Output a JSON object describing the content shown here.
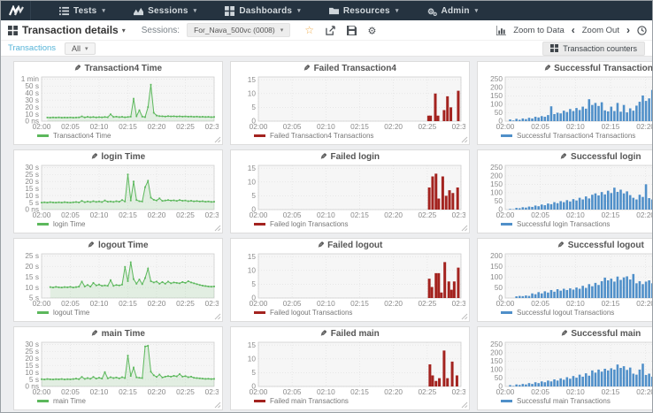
{
  "navbar": {
    "items": [
      {
        "icon": "list",
        "label": "Tests"
      },
      {
        "icon": "chart",
        "label": "Sessions"
      },
      {
        "icon": "grid",
        "label": "Dashboards"
      },
      {
        "icon": "folder",
        "label": "Resources"
      },
      {
        "icon": "cogs",
        "label": "Admin"
      }
    ]
  },
  "toolbar": {
    "title": "Transaction details",
    "sessions_label": "Sessions:",
    "session_value": "For_Nava_500vc (0008)",
    "star_icon": "favorite",
    "zoom_to_data": "Zoom to Data",
    "zoom_out": "Zoom Out"
  },
  "filterbar": {
    "transactions": "Transactions",
    "all": "All",
    "counters": "Transaction counters"
  },
  "colors": {
    "navbar_bg": "#253340",
    "accent_star": "#f0ad4e",
    "link_blue": "#56b4d8",
    "line_green": "#5cb85c",
    "bar_red": "#a3231f",
    "bar_blue": "#4f8fc9",
    "plot_bg": "#f6f6f6",
    "grid_line": "#e2e2e2",
    "plot_border": "#cfcfcf"
  },
  "xticks": [
    {
      "v": 0,
      "l": "02:00"
    },
    {
      "v": 5,
      "l": "02:05"
    },
    {
      "v": 10,
      "l": "02:10"
    },
    {
      "v": 15,
      "l": "02:15"
    },
    {
      "v": 20,
      "l": "02:20"
    },
    {
      "v": 25,
      "l": "02:25"
    },
    {
      "v": 30,
      "l": "02:30"
    }
  ],
  "chart_data": [
    {
      "type": "line",
      "title": "Transaction4 Time",
      "legend": "Transaction4 Time",
      "color": "green",
      "ylim": [
        0,
        63
      ],
      "yticks": [
        {
          "v": 60,
          "l": "1 min"
        },
        {
          "v": 50,
          "l": "50 s"
        },
        {
          "v": 40,
          "l": "40 s"
        },
        {
          "v": 30,
          "l": "30 s"
        },
        {
          "v": 20,
          "l": "20 s"
        },
        {
          "v": 10,
          "l": "10 s"
        },
        {
          "v": 0,
          "l": "0 ns"
        }
      ],
      "x_start": 1.0,
      "x_step": 0.5,
      "values": [
        5.2,
        5.0,
        5.3,
        5.1,
        5.4,
        5.0,
        5.2,
        5.1,
        5.3,
        5.0,
        5.2,
        5.4,
        6.8,
        5.4,
        6.2,
        5.6,
        6.0,
        5.4,
        5.8,
        5.5,
        6.0,
        5.6,
        9.8,
        6.0,
        6.4,
        5.8,
        6.2,
        5.6,
        6.0,
        6.4,
        32,
        7.0,
        15.5,
        6.5,
        5.8,
        20,
        52,
        12,
        8.0,
        7.2,
        7.0,
        6.6,
        7.2,
        6.8,
        7.0,
        6.6,
        6.9,
        6.5,
        6.8,
        6.4,
        6.6,
        6.2,
        6.5,
        6.1,
        6.3,
        6.0,
        6.2,
        5.8,
        6.0
      ]
    },
    {
      "type": "bar",
      "title": "Failed Transaction4",
      "legend": "Failed Transaction4 Transactions",
      "color": "red",
      "ylim": [
        0,
        16
      ],
      "yticks": [
        {
          "v": 15,
          "l": "15"
        },
        {
          "v": 10,
          "l": "10"
        },
        {
          "v": 5,
          "l": "5"
        },
        {
          "v": 0,
          "l": "0"
        }
      ],
      "points": [
        [
          25.2,
          2
        ],
        [
          25.5,
          2
        ],
        [
          26.2,
          10
        ],
        [
          26.6,
          2
        ],
        [
          27.5,
          4
        ],
        [
          28.0,
          9
        ],
        [
          28.5,
          5
        ],
        [
          29.6,
          11
        ]
      ]
    },
    {
      "type": "bar",
      "title": "Successful Transaction4",
      "legend": "Successful Transaction4 Transactions",
      "color": "blue",
      "ylim": [
        0,
        262
      ],
      "yticks": [
        {
          "v": 250,
          "l": "250"
        },
        {
          "v": 200,
          "l": "200"
        },
        {
          "v": 150,
          "l": "150"
        },
        {
          "v": 100,
          "l": "100"
        },
        {
          "v": 50,
          "l": "50"
        },
        {
          "v": 0,
          "l": "0"
        }
      ],
      "x_start": 0.7,
      "x_step": 0.45,
      "values": [
        10,
        4,
        14,
        8,
        16,
        12,
        20,
        16,
        26,
        22,
        30,
        26,
        36,
        88,
        42,
        50,
        46,
        62,
        54,
        72,
        60,
        78,
        66,
        86,
        74,
        130,
        96,
        108,
        90,
        112,
        64,
        58,
        86,
        60,
        108,
        56,
        96,
        52,
        76,
        62,
        92,
        115,
        152,
        120,
        135,
        185,
        142,
        158,
        138,
        172,
        185,
        140,
        165,
        150,
        178,
        160,
        185,
        170,
        188,
        175,
        190,
        178,
        185,
        180,
        188,
        182
      ]
    },
    {
      "type": "line",
      "title": "login Time",
      "legend": "login Time",
      "color": "green",
      "ylim": [
        0,
        31.5
      ],
      "yticks": [
        {
          "v": 30,
          "l": "30 s"
        },
        {
          "v": 25,
          "l": "25 s"
        },
        {
          "v": 20,
          "l": "20 s"
        },
        {
          "v": 15,
          "l": "15 s"
        },
        {
          "v": 10,
          "l": "10 s"
        },
        {
          "v": 5,
          "l": "5 s"
        },
        {
          "v": 0,
          "l": "0 ns"
        }
      ],
      "x_start": 0,
      "x_step": 0.5,
      "values": [
        5,
        5.2,
        5,
        5.3,
        5.1,
        5,
        5.2,
        5,
        5.3,
        5.1,
        5,
        5.2,
        5.4,
        5.1,
        6.2,
        5.3,
        5.8,
        5.4,
        6.0,
        5.5,
        5.8,
        5.4,
        6.5,
        5.6,
        5.8,
        5.5,
        6.0,
        5.6,
        6.8,
        5.8,
        25,
        6.5,
        20,
        6.8,
        6.0,
        5.8,
        16,
        20.5,
        8.5,
        7.0,
        6.5,
        8.0,
        6.2,
        6.5,
        6.8,
        6.4,
        6.6,
        6.2,
        6.8,
        6.3,
        6.5,
        6.0,
        6.3,
        5.9,
        6.1,
        5.8,
        6.0,
        5.6,
        5.8,
        5.5,
        5.6
      ]
    },
    {
      "type": "bar",
      "title": "Failed login",
      "legend": "Failed login Transactions",
      "color": "red",
      "ylim": [
        0,
        16
      ],
      "yticks": [
        {
          "v": 15,
          "l": "15"
        },
        {
          "v": 10,
          "l": "10"
        },
        {
          "v": 5,
          "l": "5"
        },
        {
          "v": 0,
          "l": "0"
        }
      ],
      "points": [
        [
          25.3,
          8
        ],
        [
          25.8,
          12
        ],
        [
          26.3,
          13
        ],
        [
          26.7,
          4
        ],
        [
          27.3,
          12
        ],
        [
          27.8,
          5
        ],
        [
          28.3,
          7
        ],
        [
          28.8,
          6
        ],
        [
          29.5,
          8
        ]
      ]
    },
    {
      "type": "bar",
      "title": "Successful login",
      "legend": "Successful login Transactions",
      "color": "blue",
      "ylim": [
        0,
        262
      ],
      "yticks": [
        {
          "v": 250,
          "l": "250"
        },
        {
          "v": 200,
          "l": "200"
        },
        {
          "v": 150,
          "l": "150"
        },
        {
          "v": 100,
          "l": "100"
        },
        {
          "v": 50,
          "l": "50"
        },
        {
          "v": 0,
          "l": "0"
        }
      ],
      "x_start": 0.7,
      "x_step": 0.45,
      "values": [
        4,
        2,
        10,
        8,
        14,
        12,
        18,
        16,
        24,
        20,
        30,
        26,
        36,
        32,
        44,
        38,
        50,
        44,
        56,
        48,
        62,
        54,
        70,
        60,
        78,
        66,
        88,
        96,
        84,
        104,
        90,
        112,
        98,
        130,
        105,
        118,
        96,
        108,
        86,
        70,
        60,
        88,
        75,
        150,
        68,
        60,
        64,
        70,
        66,
        75,
        130,
        118,
        145,
        128,
        160,
        135,
        178,
        150,
        185,
        142,
        195,
        158,
        120,
        198,
        165,
        180
      ]
    },
    {
      "type": "line",
      "title": "logout Time",
      "legend": "logout Time",
      "color": "green",
      "ylim": [
        5,
        26
      ],
      "yticks": [
        {
          "v": 25,
          "l": "25 s"
        },
        {
          "v": 20,
          "l": "20 s"
        },
        {
          "v": 15,
          "l": "15 s"
        },
        {
          "v": 10,
          "l": "10 s"
        },
        {
          "v": 5,
          "l": "5 s"
        }
      ],
      "x_start": 1.5,
      "x_step": 0.5,
      "values": [
        10.2,
        10.0,
        10.3,
        10.1,
        10.0,
        10.2,
        10.1,
        10.3,
        10.0,
        10.2,
        10.4,
        12.8,
        10.5,
        11.2,
        10.4,
        12.2,
        11.0,
        11.4,
        10.8,
        11.0,
        10.8,
        13.5,
        10.8,
        11.2,
        11.0,
        11.4,
        19.8,
        13.0,
        22.0,
        14.0,
        11.8,
        13.8,
        11.6,
        14.5,
        19.0,
        13.0,
        12.4,
        12.8,
        11.8,
        12.6,
        11.8,
        12.8,
        12.0,
        12.4,
        12.2,
        12.0,
        12.6,
        12.2,
        13.0,
        12.4,
        12.0,
        11.6,
        11.2,
        10.9,
        10.7,
        10.5,
        10.4,
        10.5
      ]
    },
    {
      "type": "bar",
      "title": "Failed logout",
      "legend": "Failed logout Transactions",
      "color": "red",
      "ylim": [
        0,
        16
      ],
      "yticks": [
        {
          "v": 15,
          "l": "15"
        },
        {
          "v": 10,
          "l": "10"
        },
        {
          "v": 5,
          "l": "5"
        },
        {
          "v": 0,
          "l": "0"
        }
      ],
      "points": [
        [
          25.3,
          7
        ],
        [
          25.7,
          4
        ],
        [
          26.3,
          9
        ],
        [
          26.7,
          9
        ],
        [
          27.1,
          2
        ],
        [
          27.6,
          13
        ],
        [
          28.2,
          6
        ],
        [
          28.6,
          3
        ],
        [
          29.0,
          6
        ],
        [
          29.6,
          11
        ]
      ]
    },
    {
      "type": "bar",
      "title": "Successful logout",
      "legend": "Successful logout Transactions",
      "color": "blue",
      "ylim": [
        0,
        210
      ],
      "yticks": [
        {
          "v": 200,
          "l": "200"
        },
        {
          "v": 150,
          "l": "150"
        },
        {
          "v": 100,
          "l": "100"
        },
        {
          "v": 50,
          "l": "50"
        },
        {
          "v": 0,
          "l": "0"
        }
      ],
      "x_start": 0.7,
      "x_step": 0.45,
      "values": [
        0,
        0,
        8,
        10,
        9,
        12,
        10,
        22,
        18,
        28,
        22,
        32,
        26,
        38,
        30,
        42,
        35,
        44,
        38,
        46,
        40,
        50,
        44,
        58,
        48,
        66,
        56,
        72,
        62,
        80,
        97,
        84,
        92,
        78,
        102,
        86,
        98,
        103,
        88,
        114,
        70,
        80,
        66,
        78,
        84,
        70,
        108,
        62,
        55,
        58,
        62,
        56,
        68,
        60,
        105,
        115,
        130,
        128,
        122,
        140,
        160,
        130,
        148,
        180,
        152,
        168
      ]
    },
    {
      "type": "line",
      "title": "main Time",
      "legend": "main Time",
      "color": "green",
      "ylim": [
        0,
        31.5
      ],
      "yticks": [
        {
          "v": 30,
          "l": "30 s"
        },
        {
          "v": 25,
          "l": "25 s"
        },
        {
          "v": 20,
          "l": "20 s"
        },
        {
          "v": 15,
          "l": "15 s"
        },
        {
          "v": 10,
          "l": "10 s"
        },
        {
          "v": 5,
          "l": "5 s"
        },
        {
          "v": 0,
          "l": "0 ns"
        }
      ],
      "x_start": 0,
      "x_step": 0.5,
      "values": [
        5.2,
        5.0,
        5.3,
        5.1,
        5.0,
        5.2,
        5.1,
        5.3,
        5.0,
        5.2,
        5.1,
        5.3,
        5.6,
        5.2,
        6.8,
        5.4,
        6.0,
        5.5,
        6.8,
        5.6,
        6.2,
        5.6,
        10.2,
        5.8,
        6.6,
        6.0,
        6.4,
        5.8,
        6.6,
        6.0,
        22,
        7.5,
        13.5,
        6.5,
        6.2,
        6.0,
        28.5,
        29,
        10.5,
        8.0,
        6.8,
        8.5,
        6.4,
        7.0,
        7.4,
        7.0,
        7.6,
        7.2,
        8.8,
        7.0,
        7.4,
        6.6,
        7.0,
        6.2,
        6.0,
        5.8,
        5.6,
        5.4,
        5.5,
        5.3,
        5.4
      ]
    },
    {
      "type": "bar",
      "title": "Failed main",
      "legend": "Failed main Transactions",
      "color": "red",
      "ylim": [
        0,
        16
      ],
      "yticks": [
        {
          "v": 15,
          "l": "15"
        },
        {
          "v": 10,
          "l": "10"
        },
        {
          "v": 5,
          "l": "5"
        },
        {
          "v": 0,
          "l": "0"
        }
      ],
      "points": [
        [
          25.4,
          8
        ],
        [
          25.8,
          4
        ],
        [
          26.3,
          2
        ],
        [
          26.8,
          3
        ],
        [
          27.5,
          13
        ],
        [
          28.0,
          3
        ],
        [
          28.7,
          9
        ],
        [
          29.4,
          4
        ]
      ]
    },
    {
      "type": "bar",
      "title": "Successful main",
      "legend": "Successful main Transactions",
      "color": "blue",
      "ylim": [
        0,
        262
      ],
      "yticks": [
        {
          "v": 250,
          "l": "250"
        },
        {
          "v": 200,
          "l": "200"
        },
        {
          "v": 150,
          "l": "150"
        },
        {
          "v": 100,
          "l": "100"
        },
        {
          "v": 50,
          "l": "50"
        },
        {
          "v": 0,
          "l": "0"
        }
      ],
      "x_start": 0.7,
      "x_step": 0.45,
      "values": [
        8,
        3,
        12,
        9,
        15,
        12,
        20,
        15,
        25,
        20,
        30,
        25,
        35,
        30,
        42,
        35,
        48,
        40,
        55,
        46,
        62,
        52,
        70,
        58,
        78,
        64,
        95,
        82,
        100,
        88,
        105,
        95,
        108,
        100,
        130,
        110,
        120,
        98,
        112,
        76,
        70,
        100,
        135,
        68,
        76,
        58,
        65,
        60,
        72,
        66,
        95,
        88,
        140,
        110,
        190,
        135,
        162,
        150,
        188,
        145,
        158,
        150,
        165,
        155,
        175,
        182
      ]
    }
  ]
}
